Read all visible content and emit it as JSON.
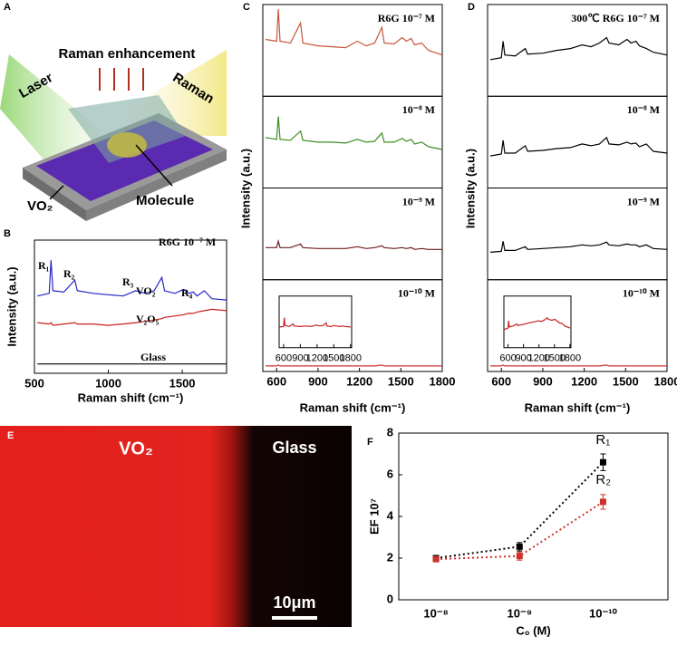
{
  "panel_a": {
    "panel_label": "A",
    "title": "Raman enhancement",
    "laser": "Laser",
    "raman": "Raman",
    "substrate": "VO₂",
    "molecule": "Molecule"
  },
  "panel_e": {
    "panel_label": "E",
    "left": "VO₂",
    "right": "Glass",
    "scale_bar": "10μm"
  },
  "chart_data": [
    {
      "type": "line",
      "panel_label": "B",
      "x": [
        520,
        600,
        612,
        625,
        700,
        773,
        790,
        900,
        1000,
        1100,
        1185,
        1250,
        1310,
        1362,
        1380,
        1450,
        1510,
        1540,
        1575,
        1600,
        1650,
        1700,
        1800
      ],
      "xlim": [
        500,
        1800
      ],
      "xticks": [
        500,
        1000,
        1500
      ],
      "ylim": [
        0,
        100
      ],
      "xlabel": "Raman shift (cm⁻¹)",
      "ylabel": "Intensity (a.u.)",
      "annotations": [
        "R6G 10⁻⁷ M",
        "R₁",
        "R₂",
        "R₃",
        "R₄"
      ],
      "series": [
        {
          "name": "VO₂",
          "color": "#2424c8",
          "values": [
            58,
            60,
            85,
            62,
            61,
            70,
            62,
            60,
            59,
            58,
            62,
            60,
            62,
            72,
            62,
            60,
            63,
            60,
            61,
            58,
            62,
            56,
            55
          ]
        },
        {
          "name": "V₂O₅",
          "color": "#c8201c",
          "values": [
            38,
            37,
            38,
            36,
            37,
            38,
            37,
            37,
            36,
            37,
            38,
            39,
            40,
            41,
            42,
            43,
            44,
            45,
            45,
            46,
            47,
            48,
            47
          ]
        },
        {
          "name": "Glass",
          "color": "#000000",
          "values": [
            7,
            7,
            7,
            7,
            7,
            7,
            7,
            7,
            7,
            7,
            7,
            7,
            7,
            7,
            7,
            7,
            7,
            7,
            7,
            7,
            7,
            7,
            7
          ]
        }
      ]
    },
    {
      "type": "stacked-line",
      "panel_label": "C",
      "x": [
        520,
        600,
        612,
        625,
        700,
        773,
        790,
        900,
        1000,
        1100,
        1185,
        1250,
        1310,
        1362,
        1380,
        1450,
        1510,
        1540,
        1575,
        1600,
        1650,
        1700,
        1800
      ],
      "xlim": [
        500,
        1800
      ],
      "xticks": [
        600,
        900,
        1200,
        1500,
        1800
      ],
      "ylim": [
        0,
        100
      ],
      "xlabel": "Raman shift (cm⁻¹)",
      "ylabel": "Intensity (a.u.)",
      "panels": [
        {
          "label": "R6G  10⁻⁷ M",
          "color": "#c8553a",
          "values": [
            62,
            60,
            95,
            60,
            58,
            80,
            58,
            55,
            54,
            53,
            60,
            55,
            58,
            75,
            58,
            57,
            64,
            60,
            63,
            56,
            58,
            50,
            45
          ]
        },
        {
          "label": "10⁻⁸ M",
          "color": "#3c8c1e",
          "values": [
            55,
            53,
            78,
            53,
            52,
            62,
            52,
            50,
            50,
            49,
            53,
            50,
            51,
            60,
            50,
            50,
            54,
            51,
            53,
            48,
            50,
            45,
            42
          ]
        },
        {
          "label": "10⁻⁹  M",
          "color": "#6e1e1e",
          "values": [
            35,
            35,
            42,
            35,
            35,
            39,
            35,
            34,
            34,
            34,
            36,
            34,
            35,
            37,
            35,
            34,
            35,
            34,
            35,
            33,
            34,
            33,
            33
          ]
        },
        {
          "label": "10⁻¹⁰ M",
          "color": "#d03030",
          "values": [
            6,
            6,
            7,
            6,
            6,
            6,
            6,
            6,
            6,
            6,
            6,
            6,
            6,
            7,
            6,
            6,
            6,
            6,
            6,
            6,
            6,
            6,
            6
          ],
          "inset": {
            "xlim": [
              520,
              1820
            ],
            "xticks": [
              600,
              900,
              1200,
              1500,
              1800
            ],
            "ylim": [
              0,
              100
            ],
            "color": "#c82020",
            "values": [
              40,
              41,
              58,
              43,
              41,
              46,
              42,
              41,
              42,
              41,
              44,
              42,
              43,
              48,
              42,
              41,
              43,
              42,
              42,
              41,
              42,
              41,
              40
            ]
          }
        }
      ]
    },
    {
      "type": "stacked-line",
      "panel_label": "D",
      "x": [
        520,
        600,
        612,
        625,
        700,
        773,
        790,
        900,
        1000,
        1100,
        1185,
        1250,
        1310,
        1362,
        1380,
        1450,
        1510,
        1540,
        1575,
        1600,
        1650,
        1700,
        1800
      ],
      "xlim": [
        500,
        1800
      ],
      "xticks": [
        600,
        900,
        1200,
        1500,
        1800
      ],
      "ylim": [
        0,
        100
      ],
      "xlabel": "Raman shift (cm⁻¹)",
      "ylabel": "Intensity (a.u.)",
      "panels": [
        {
          "label": "300℃  R6G  10⁻⁷ M",
          "color": "#000000",
          "values": [
            40,
            42,
            60,
            45,
            44,
            52,
            46,
            47,
            50,
            52,
            56,
            54,
            58,
            64,
            58,
            56,
            62,
            58,
            60,
            55,
            52,
            48,
            45
          ]
        },
        {
          "label": "10⁻⁸ M",
          "color": "#000000",
          "values": [
            35,
            37,
            52,
            38,
            38,
            46,
            40,
            41,
            43,
            44,
            48,
            46,
            48,
            55,
            48,
            47,
            50,
            48,
            49,
            45,
            48,
            40,
            38
          ]
        },
        {
          "label": "10⁻⁹  M",
          "color": "#000000",
          "values": [
            30,
            31,
            42,
            32,
            32,
            36,
            33,
            34,
            35,
            36,
            38,
            37,
            38,
            41,
            38,
            37,
            39,
            38,
            38,
            36,
            38,
            34,
            33
          ]
        },
        {
          "label": "10⁻¹⁰ M",
          "color": "#d03030",
          "values": [
            6,
            6,
            7,
            6,
            6,
            6,
            6,
            6,
            6,
            6,
            6,
            6,
            6,
            7,
            6,
            6,
            6,
            6,
            6,
            6,
            6,
            6,
            6
          ],
          "inset": {
            "xlim": [
              520,
              1820
            ],
            "xticks": [
              600,
              900,
              1200,
              1500,
              1800
            ],
            "ylim": [
              0,
              100
            ],
            "color": "#c82020",
            "values": [
              35,
              38,
              52,
              40,
              42,
              46,
              43,
              45,
              48,
              50,
              52,
              51,
              54,
              58,
              55,
              53,
              55,
              52,
              50,
              48,
              47,
              42,
              38
            ]
          }
        }
      ]
    },
    {
      "type": "errorbar",
      "panel_label": "F",
      "categories": [
        "10⁻⁸",
        "10⁻⁹",
        "10⁻¹⁰"
      ],
      "ylim": [
        0,
        8
      ],
      "yticks": [
        0,
        2,
        4,
        6,
        8
      ],
      "xlabel": "C₀ (M)",
      "ylabel": "EF 10⁷",
      "series": [
        {
          "name": "R₁",
          "color": "#000000",
          "values": [
            2.0,
            2.55,
            6.6
          ],
          "errors": [
            0.1,
            0.2,
            0.4
          ]
        },
        {
          "name": "R₂",
          "color": "#d0302a",
          "values": [
            1.95,
            2.1,
            4.7
          ],
          "errors": [
            0.1,
            0.2,
            0.35
          ]
        }
      ]
    }
  ]
}
